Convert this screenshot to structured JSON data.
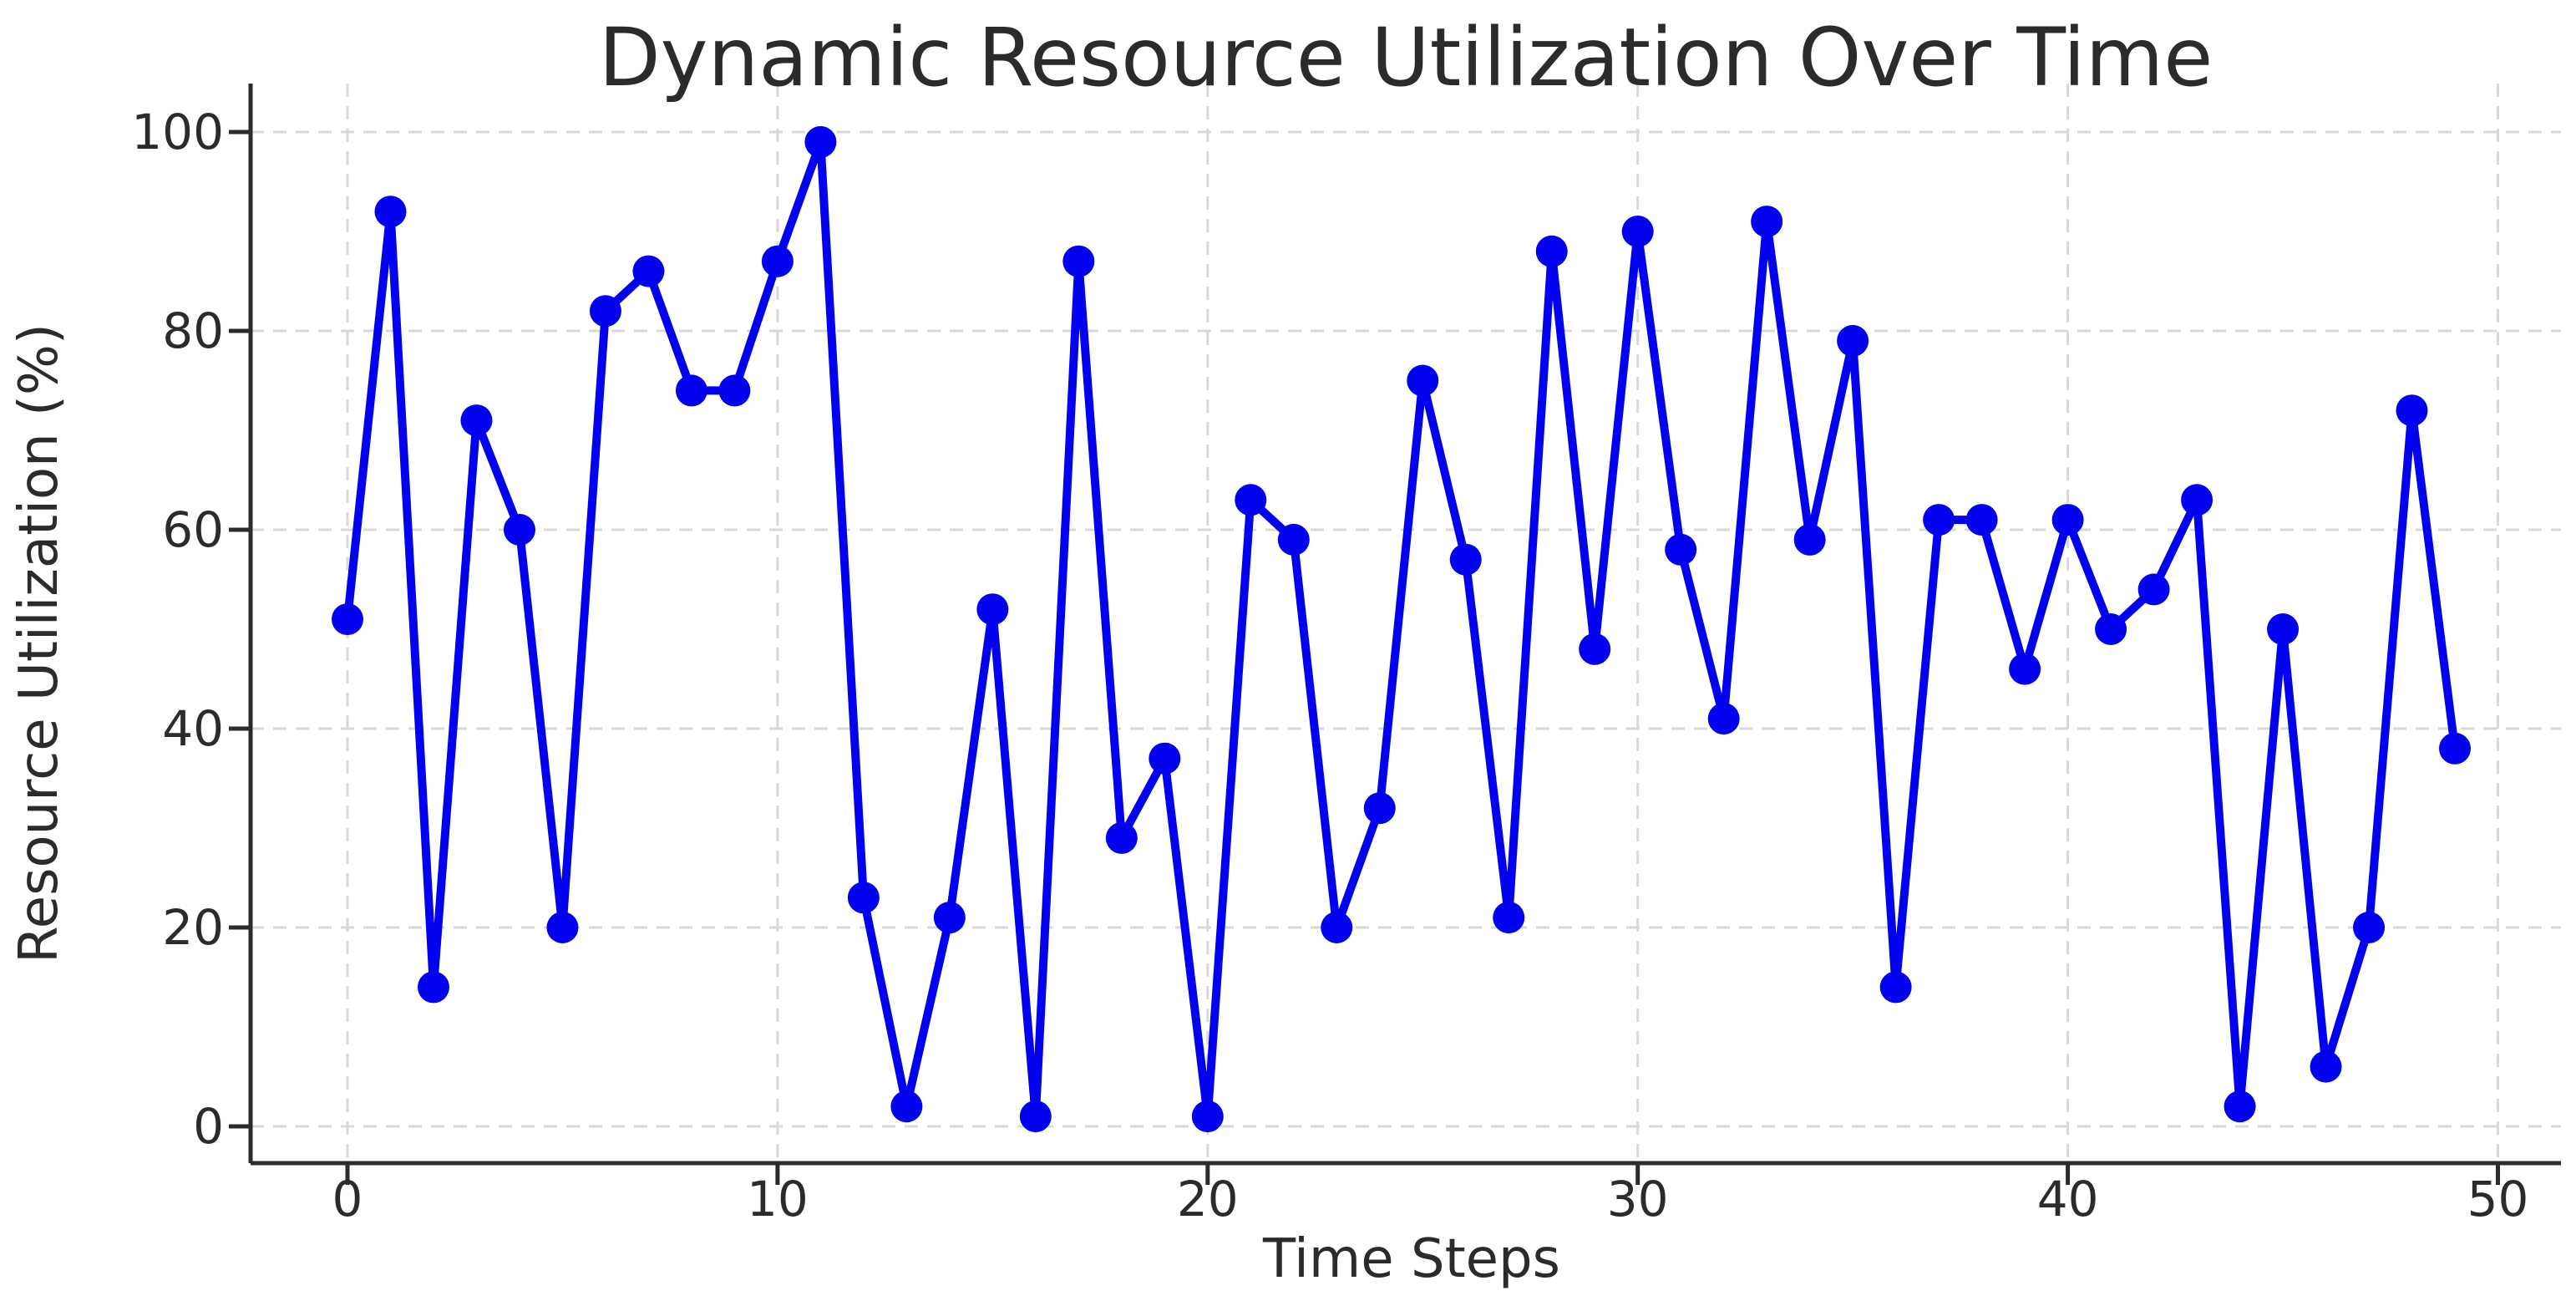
{
  "chart_data": {
    "type": "line",
    "title": "Dynamic Resource Utilization Over Time",
    "xlabel": "Time Steps",
    "ylabel": "Resource Utilization (%)",
    "x": [
      0,
      1,
      2,
      3,
      4,
      5,
      6,
      7,
      8,
      9,
      10,
      11,
      12,
      13,
      14,
      15,
      16,
      17,
      18,
      19,
      20,
      21,
      22,
      23,
      24,
      25,
      26,
      27,
      28,
      29,
      30,
      31,
      32,
      33,
      34,
      35,
      36,
      37,
      38,
      39,
      40,
      41,
      42,
      43,
      44,
      45,
      46,
      47,
      48,
      49
    ],
    "series": [
      {
        "values": [
          51,
          92,
          14,
          71,
          60,
          20,
          82,
          86,
          74,
          74,
          87,
          99,
          23,
          2,
          21,
          52,
          1,
          87,
          29,
          37,
          1,
          63,
          59,
          20,
          32,
          75,
          57,
          21,
          88,
          48,
          90,
          58,
          41,
          91,
          59,
          79,
          14,
          61,
          61,
          46,
          61,
          50,
          54,
          63,
          2,
          50,
          6,
          20,
          72,
          38
        ]
      }
    ],
    "xticks": [
      0,
      10,
      20,
      30,
      40,
      50
    ],
    "yticks": [
      0,
      20,
      40,
      60,
      80,
      100
    ],
    "xlim": [
      -2.45,
      51.45
    ],
    "ylim": [
      -3.9,
      103.9
    ],
    "grid": true,
    "grid_style": "dashed",
    "legend": "none",
    "marker": "circle",
    "line_color": "#0202ee",
    "grid_color": "#d9d9d9",
    "axis_color": "#2b2b2b",
    "text_color": "#2b2b2b",
    "background": "#ffffff"
  }
}
